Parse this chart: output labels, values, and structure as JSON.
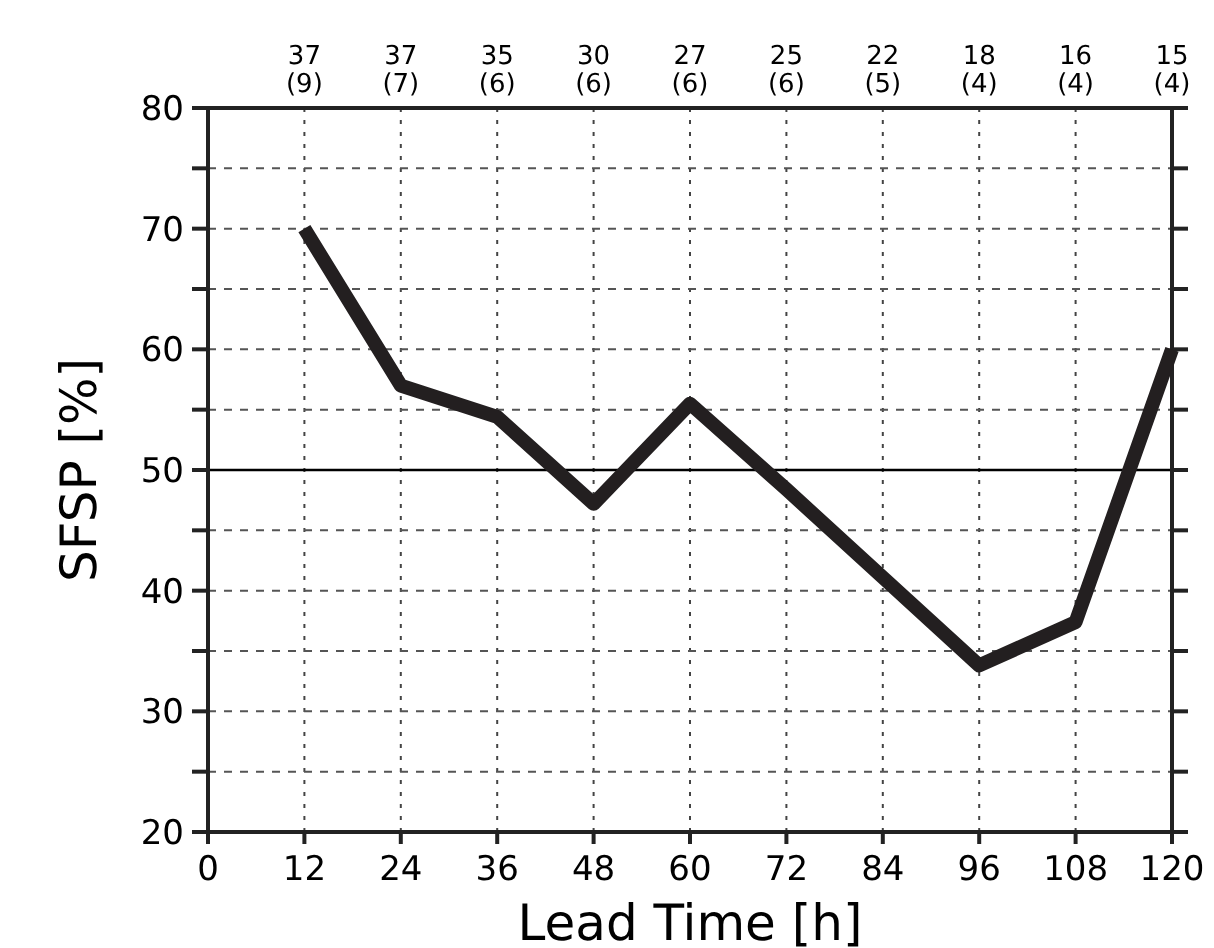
{
  "chart_data": {
    "type": "line",
    "xlabel": "Lead Time [h]",
    "ylabel": "SFSP [%]",
    "x": [
      12,
      24,
      36,
      48,
      60,
      72,
      84,
      96,
      108,
      120
    ],
    "series": [
      {
        "color": "#231f20",
        "values": [
          70,
          57,
          54.4,
          47.2,
          55.5,
          48.4,
          41.1,
          33.8,
          37.4,
          60
        ]
      }
    ],
    "xlim": [
      0,
      120
    ],
    "xticks": [
      0,
      12,
      24,
      36,
      48,
      60,
      72,
      84,
      96,
      108,
      120
    ],
    "ylim": [
      20,
      80
    ],
    "yticks": [
      20,
      {
        "value": 25,
        "label": null
      },
      30,
      {
        "value": 35,
        "label": null
      },
      40,
      {
        "value": 45,
        "label": null
      },
      50,
      {
        "value": 55,
        "label": null
      },
      60,
      {
        "value": 65,
        "label": null
      },
      70,
      {
        "value": 75,
        "label": null
      },
      80
    ],
    "annotations": [
      "37\n(9)",
      "37\n(7)",
      "35\n(6)",
      "30\n(6)",
      "27\n(6)",
      "25\n(6)",
      "22\n(5)",
      "18\n(4)",
      "16\n(4)",
      "15\n(4)"
    ],
    "ref_lines": [
      {
        "axis": "y",
        "value": 50,
        "color": "#000000",
        "line_style": "solid"
      }
    ],
    "grid": true,
    "marker": "none",
    "line_style": "solid"
  }
}
